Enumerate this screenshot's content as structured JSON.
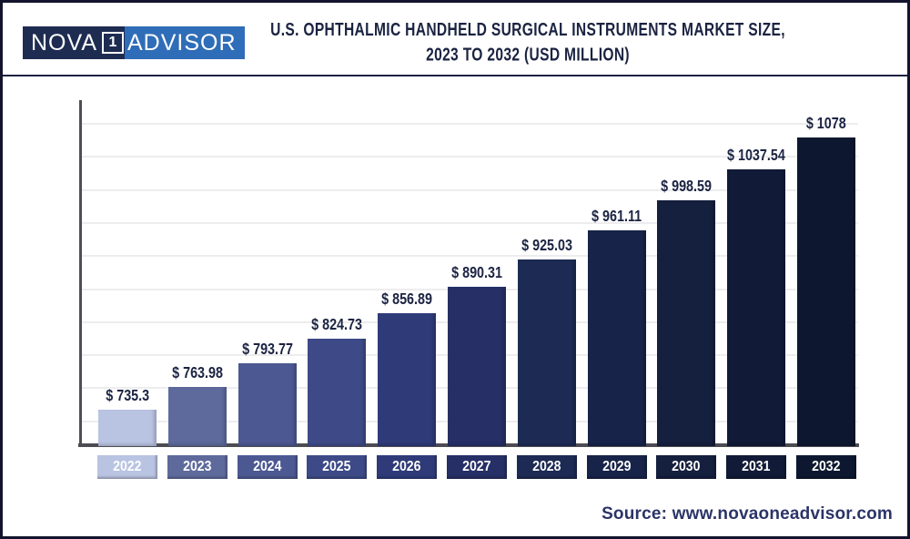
{
  "header": {
    "logo": {
      "part_nova": "NOVA",
      "part_one": "1",
      "part_advisor": "ADVISOR"
    },
    "title_line1": "U.S. OPHTHALMIC HANDHELD SURGICAL INSTRUMENTS MARKET SIZE,",
    "title_line2": "2023 TO 2032 (USD MILLION)"
  },
  "chart_data": {
    "type": "bar",
    "title": "U.S. Ophthalmic Handheld Surgical Instruments Market Size, 2023 to 2032 (USD Million)",
    "categories": [
      "2022",
      "2023",
      "2024",
      "2025",
      "2026",
      "2027",
      "2028",
      "2029",
      "2030",
      "2031",
      "2032"
    ],
    "values": [
      735.3,
      763.98,
      793.77,
      824.73,
      856.89,
      890.31,
      925.03,
      961.11,
      998.59,
      1037.54,
      1078
    ],
    "value_labels": [
      "$ 735.3",
      "$ 763.98",
      "$ 793.77",
      "$ 824.73",
      "$ 856.89",
      "$ 890.31",
      "$ 925.03",
      "$ 961.11",
      "$ 998.59",
      "$ 1037.54",
      "$ 1078"
    ],
    "bar_colors": [
      "#b9c3e2",
      "#5e6a9c",
      "#4c5892",
      "#3d4a87",
      "#2f3b79",
      "#262f66",
      "#1d2a54",
      "#172348",
      "#151f3e",
      "#111b37",
      "#0d1830"
    ],
    "unit": "USD Million",
    "xlabel": "",
    "ylabel": "",
    "ylim": [
      690,
      1130
    ],
    "grid": true,
    "gridline_count": 10,
    "legend": "none",
    "accent_text_color": "#1b2342"
  },
  "footer": {
    "source": "Source: www.novaoneadvisor.com"
  }
}
